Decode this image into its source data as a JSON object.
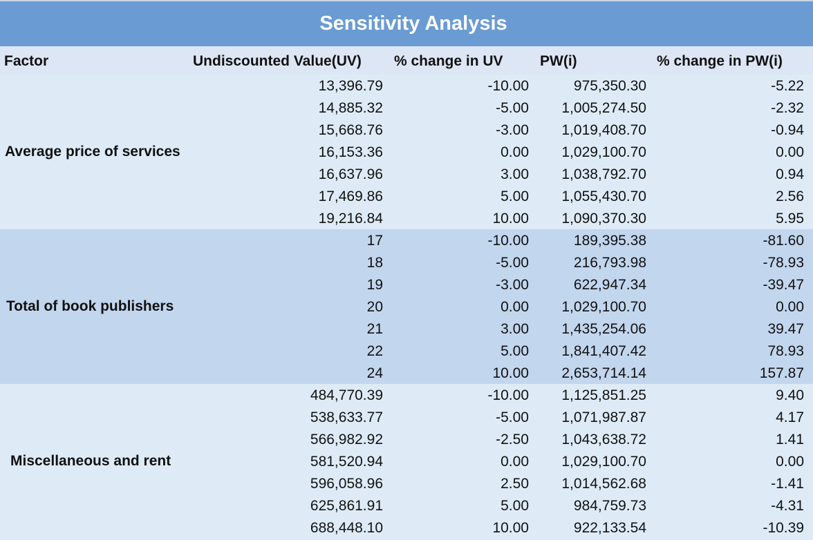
{
  "title": "Sensitivity Analysis",
  "headers": {
    "factor": "Factor",
    "uv": "Undiscounted Value(UV)",
    "pct_uv": "% change in UV",
    "pw": "PW(i)",
    "pct_pw": "% change in PW(i)"
  },
  "colors": {
    "title_bg": "#6a9bd2",
    "header_bg": "#dde6f4",
    "band_light": "#deebf7",
    "band_dark": "#c2d6ee"
  },
  "groups": [
    {
      "factor": "Average price of services",
      "rows": [
        {
          "uv": "13,396.79",
          "pct_uv": "-10.00",
          "pw": "975,350.30",
          "pct_pw": "-5.22"
        },
        {
          "uv": "14,885.32",
          "pct_uv": "-5.00",
          "pw": "1,005,274.50",
          "pct_pw": "-2.32"
        },
        {
          "uv": "15,668.76",
          "pct_uv": "-3.00",
          "pw": "1,019,408.70",
          "pct_pw": "-0.94"
        },
        {
          "uv": "16,153.36",
          "pct_uv": "0.00",
          "pw": "1,029,100.70",
          "pct_pw": "0.00"
        },
        {
          "uv": "16,637.96",
          "pct_uv": "3.00",
          "pw": "1,038,792.70",
          "pct_pw": "0.94"
        },
        {
          "uv": "17,469.86",
          "pct_uv": "5.00",
          "pw": "1,055,430.70",
          "pct_pw": "2.56"
        },
        {
          "uv": "19,216.84",
          "pct_uv": "10.00",
          "pw": "1,090,370.30",
          "pct_pw": "5.95"
        }
      ]
    },
    {
      "factor": "Total of book publishers",
      "rows": [
        {
          "uv": "17",
          "pct_uv": "-10.00",
          "pw": "189,395.38",
          "pct_pw": "-81.60"
        },
        {
          "uv": "18",
          "pct_uv": "-5.00",
          "pw": "216,793.98",
          "pct_pw": "-78.93"
        },
        {
          "uv": "19",
          "pct_uv": "-3.00",
          "pw": "622,947.34",
          "pct_pw": "-39.47"
        },
        {
          "uv": "20",
          "pct_uv": "0.00",
          "pw": "1,029,100.70",
          "pct_pw": "0.00"
        },
        {
          "uv": "21",
          "pct_uv": "3.00",
          "pw": "1,435,254.06",
          "pct_pw": "39.47"
        },
        {
          "uv": "22",
          "pct_uv": "5.00",
          "pw": "1,841,407.42",
          "pct_pw": "78.93"
        },
        {
          "uv": "24",
          "pct_uv": "10.00",
          "pw": "2,653,714.14",
          "pct_pw": "157.87"
        }
      ]
    },
    {
      "factor": "Miscellaneous and rent",
      "rows": [
        {
          "uv": "484,770.39",
          "pct_uv": "-10.00",
          "pw": "1,125,851.25",
          "pct_pw": "9.40"
        },
        {
          "uv": "538,633.77",
          "pct_uv": "-5.00",
          "pw": "1,071,987.87",
          "pct_pw": "4.17"
        },
        {
          "uv": "566,982.92",
          "pct_uv": "-2.50",
          "pw": "1,043,638.72",
          "pct_pw": "1.41"
        },
        {
          "uv": "581,520.94",
          "pct_uv": "0.00",
          "pw": "1,029,100.70",
          "pct_pw": "0.00"
        },
        {
          "uv": "596,058.96",
          "pct_uv": "2.50",
          "pw": "1,014,562.68",
          "pct_pw": "-1.41"
        },
        {
          "uv": "625,861.91",
          "pct_uv": "5.00",
          "pw": "984,759.73",
          "pct_pw": "-4.31"
        },
        {
          "uv": "688,448.10",
          "pct_uv": "10.00",
          "pw": "922,133.54",
          "pct_pw": "-10.39"
        }
      ]
    }
  ]
}
